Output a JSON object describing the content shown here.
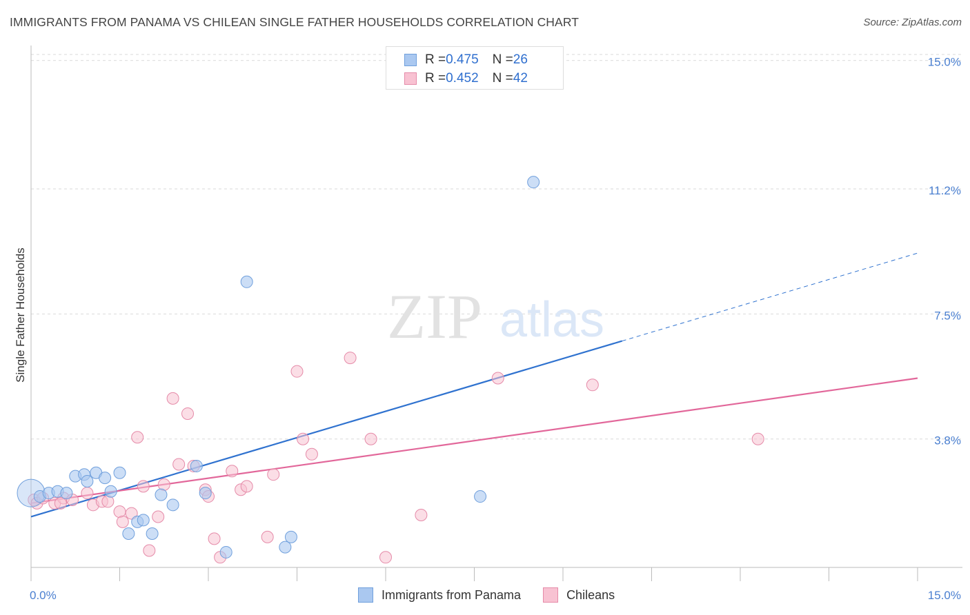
{
  "title": "IMMIGRANTS FROM PANAMA VS CHILEAN SINGLE FATHER HOUSEHOLDS CORRELATION CHART",
  "source": "Source: ZipAtlas.com",
  "watermark": {
    "zip": "ZIP",
    "atlas": "atlas"
  },
  "legend_top": {
    "rows": [
      {
        "r_label": "R = ",
        "r_value": "0.475",
        "n_label": "N = ",
        "n_value": "26"
      },
      {
        "r_label": "R = ",
        "r_value": "0.452",
        "n_label": "N = ",
        "n_value": "42"
      }
    ]
  },
  "legend_bottom": {
    "items": [
      {
        "label": "Immigrants from Panama"
      },
      {
        "label": "Chileans"
      }
    ]
  },
  "colors": {
    "blue_fill": "#aac8f0",
    "blue_stroke": "#6f9fdc",
    "blue_line": "#2f72cf",
    "pink_fill": "#f8c2d2",
    "pink_stroke": "#e58aa8",
    "pink_line": "#e2679a",
    "grid": "#d9d9d9",
    "axis": "#bbbbbb"
  },
  "chart_data": {
    "type": "scatter",
    "title": "IMMIGRANTS FROM PANAMA VS CHILEAN SINGLE FATHER HOUSEHOLDS CORRELATION CHART",
    "xlabel": "",
    "ylabel": "Single Father Households",
    "xlim": [
      0,
      15
    ],
    "ylim": [
      0,
      15.3
    ],
    "x_tick_labels": [
      "0.0%",
      "15.0%"
    ],
    "y_ticks": [
      3.8,
      7.5,
      11.2,
      15.0
    ],
    "y_tick_labels": [
      "3.8%",
      "7.5%",
      "11.2%",
      "15.0%"
    ],
    "series": [
      {
        "name": "Immigrants from Panama",
        "r": 0.475,
        "n": 26,
        "trend": {
          "x0": 0,
          "y0": 1.5,
          "x1": 15,
          "y1": 9.3,
          "solid_until_x": 10.0
        },
        "points": [
          {
            "x": 0.0,
            "y": 2.2,
            "big": true
          },
          {
            "x": 0.15,
            "y": 2.1
          },
          {
            "x": 0.3,
            "y": 2.2
          },
          {
            "x": 0.45,
            "y": 2.25
          },
          {
            "x": 0.6,
            "y": 2.2
          },
          {
            "x": 0.75,
            "y": 2.7
          },
          {
            "x": 0.9,
            "y": 2.75
          },
          {
            "x": 0.95,
            "y": 2.55
          },
          {
            "x": 1.1,
            "y": 2.8
          },
          {
            "x": 1.25,
            "y": 2.65
          },
          {
            "x": 1.35,
            "y": 2.25
          },
          {
            "x": 1.5,
            "y": 2.8
          },
          {
            "x": 1.65,
            "y": 1.0
          },
          {
            "x": 1.8,
            "y": 1.35
          },
          {
            "x": 1.9,
            "y": 1.4
          },
          {
            "x": 2.05,
            "y": 1.0
          },
          {
            "x": 2.2,
            "y": 2.15
          },
          {
            "x": 2.4,
            "y": 1.85
          },
          {
            "x": 2.8,
            "y": 3.0
          },
          {
            "x": 2.95,
            "y": 2.2
          },
          {
            "x": 3.3,
            "y": 0.45
          },
          {
            "x": 3.65,
            "y": 8.45
          },
          {
            "x": 4.3,
            "y": 0.6
          },
          {
            "x": 4.4,
            "y": 0.9
          },
          {
            "x": 7.6,
            "y": 2.1
          },
          {
            "x": 8.5,
            "y": 11.4
          }
        ]
      },
      {
        "name": "Chileans",
        "r": 0.452,
        "n": 42,
        "trend": {
          "x0": 0,
          "y0": 1.9,
          "x1": 15,
          "y1": 5.6
        },
        "points": [
          {
            "x": 0.05,
            "y": 2.0
          },
          {
            "x": 0.1,
            "y": 1.9
          },
          {
            "x": 0.2,
            "y": 2.05
          },
          {
            "x": 0.4,
            "y": 1.9
          },
          {
            "x": 0.55,
            "y": 2.05
          },
          {
            "x": 0.7,
            "y": 2.0
          },
          {
            "x": 0.95,
            "y": 2.2
          },
          {
            "x": 1.05,
            "y": 1.85
          },
          {
            "x": 1.2,
            "y": 1.95
          },
          {
            "x": 1.3,
            "y": 1.95
          },
          {
            "x": 1.5,
            "y": 1.65
          },
          {
            "x": 1.55,
            "y": 1.35
          },
          {
            "x": 1.7,
            "y": 1.6
          },
          {
            "x": 1.8,
            "y": 3.85
          },
          {
            "x": 1.9,
            "y": 2.4
          },
          {
            "x": 2.0,
            "y": 0.5
          },
          {
            "x": 2.15,
            "y": 1.5
          },
          {
            "x": 2.25,
            "y": 2.45
          },
          {
            "x": 2.4,
            "y": 5.0
          },
          {
            "x": 2.5,
            "y": 3.05
          },
          {
            "x": 2.65,
            "y": 4.55
          },
          {
            "x": 2.75,
            "y": 3.0
          },
          {
            "x": 2.95,
            "y": 2.3
          },
          {
            "x": 3.0,
            "y": 2.1
          },
          {
            "x": 3.1,
            "y": 0.85
          },
          {
            "x": 3.2,
            "y": 0.3
          },
          {
            "x": 3.4,
            "y": 2.85
          },
          {
            "x": 3.55,
            "y": 2.3
          },
          {
            "x": 3.65,
            "y": 2.4
          },
          {
            "x": 4.0,
            "y": 0.9
          },
          {
            "x": 4.1,
            "y": 2.75
          },
          {
            "x": 4.5,
            "y": 5.8
          },
          {
            "x": 4.6,
            "y": 3.8
          },
          {
            "x": 4.75,
            "y": 3.35
          },
          {
            "x": 5.4,
            "y": 6.2
          },
          {
            "x": 5.75,
            "y": 3.8
          },
          {
            "x": 6.0,
            "y": 0.3
          },
          {
            "x": 6.6,
            "y": 1.55
          },
          {
            "x": 7.9,
            "y": 5.6
          },
          {
            "x": 9.5,
            "y": 5.4
          },
          {
            "x": 12.3,
            "y": 3.8
          },
          {
            "x": 0.5,
            "y": 1.9
          }
        ]
      }
    ]
  }
}
